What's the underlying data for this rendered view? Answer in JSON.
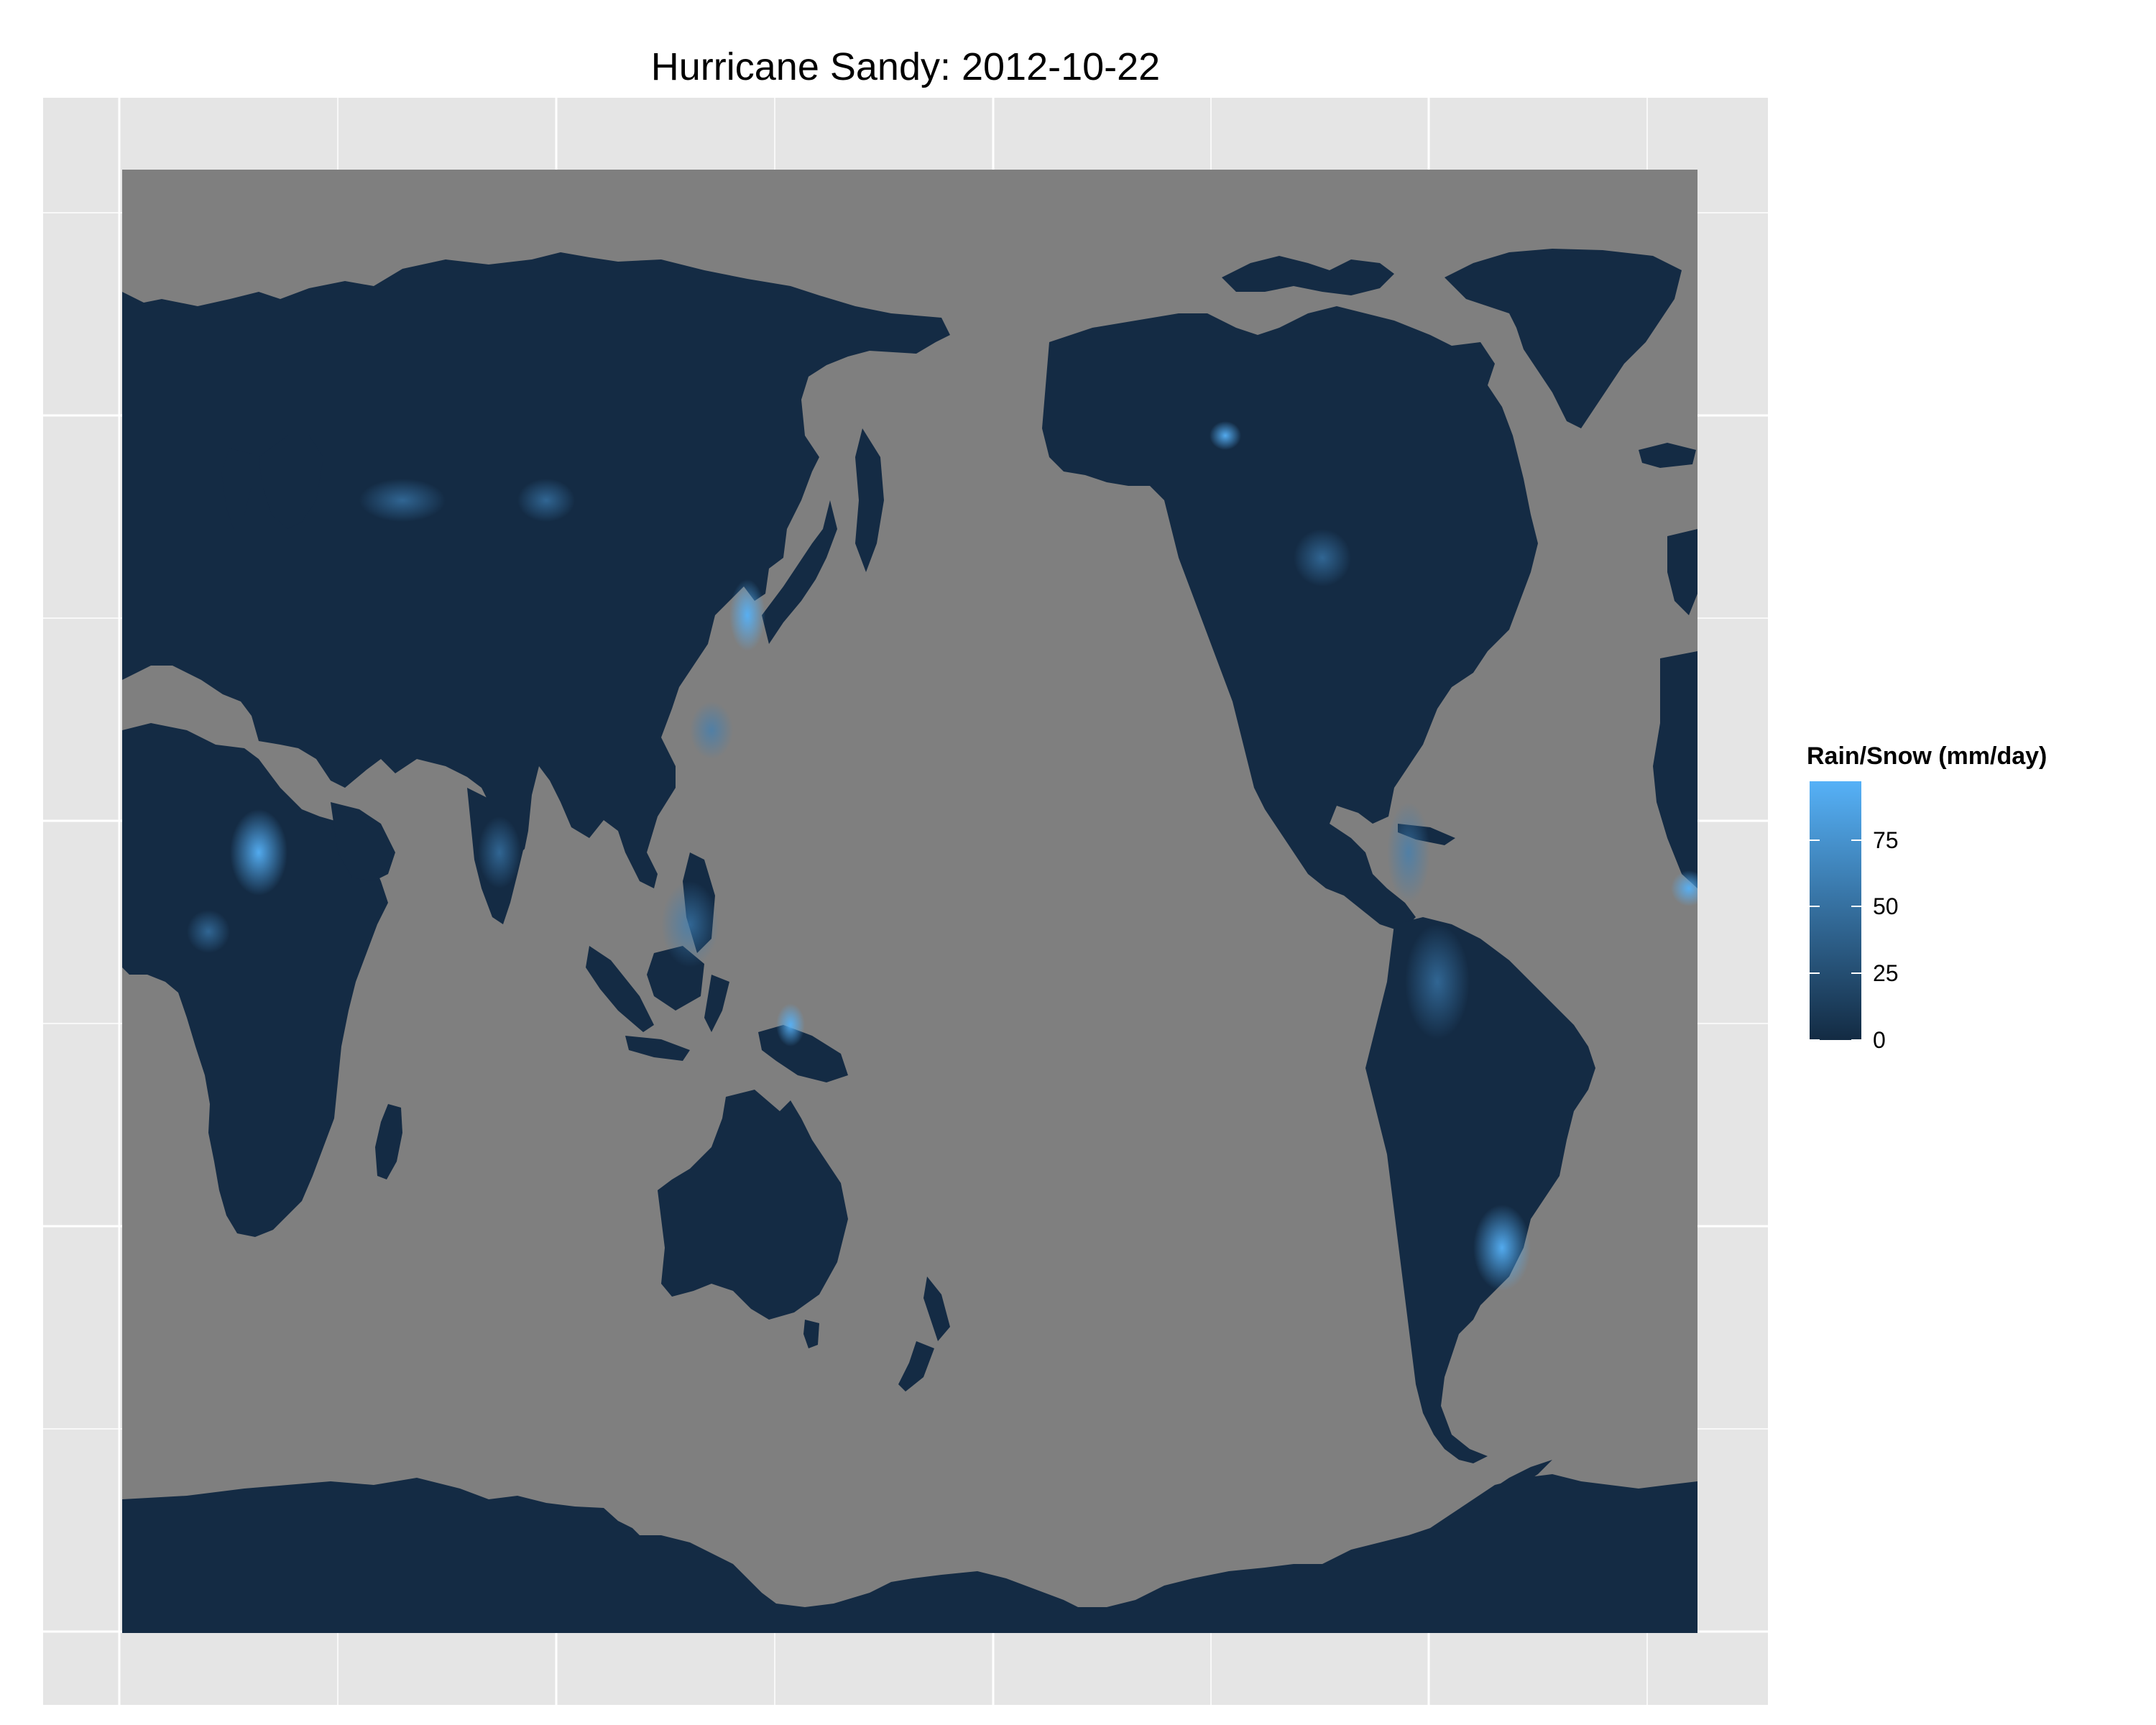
{
  "title": "Hurricane Sandy: 2012-10-22",
  "legend": {
    "title": "Rain/Snow (mm/day)",
    "ticks": [
      "75",
      "50",
      "25",
      "0"
    ],
    "tick_values": [
      75,
      50,
      25,
      0
    ],
    "range": [
      0,
      97
    ],
    "colors": {
      "low": "#132b43",
      "high": "#56b1f7"
    }
  },
  "colors": {
    "ocean": "#7f7f7f",
    "land": "#142b44",
    "panel_background": "#e5e5e5",
    "grid": "#ffffff",
    "rain_low": "#132b43",
    "rain_high": "#56b1f7"
  }
}
